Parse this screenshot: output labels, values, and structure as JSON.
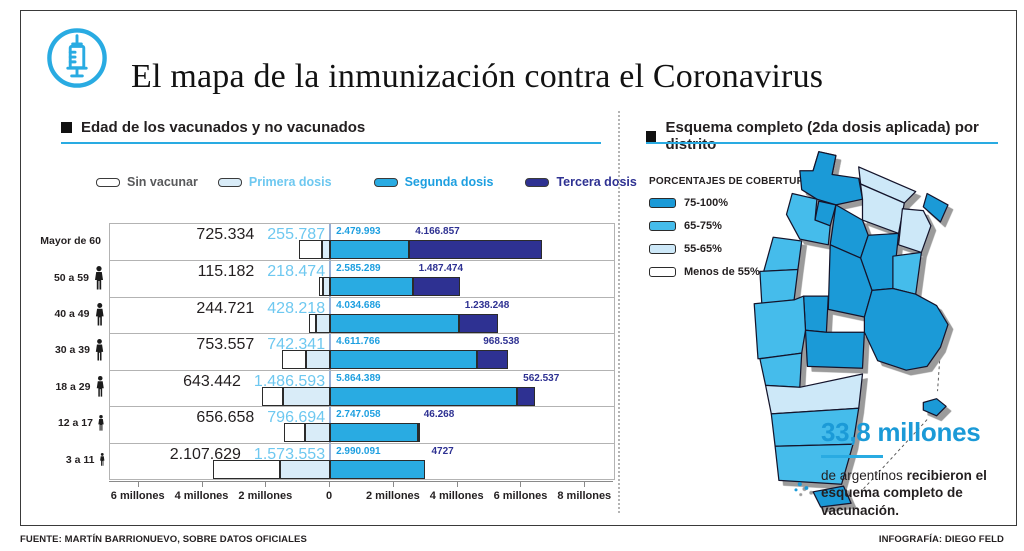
{
  "header": {
    "title": "El mapa de la inmunización contra el Coronavirus",
    "icon": "syringe-icon",
    "accent_color": "#29ABE2"
  },
  "left_panel": {
    "section_title": "Edad de los vacunados y no vacunados"
  },
  "right_panel": {
    "section_title": "Esquema completo (2da dosis aplicada) por distrito",
    "legend_title": "PORCENTAJES DE COBERTURA",
    "callout": {
      "headline": "33,8 millones",
      "text_normal": "de argentinos ",
      "text_bold": "recibieron el esquema completo de vacunación."
    }
  },
  "footer": {
    "source": "FUENTE: MARTÍN BARRIONUEVO, SOBRE DATOS OFICIALES",
    "credit": "INFOGRAFÍA: DIEGO FELD"
  },
  "chart_data": [
    {
      "type": "bar",
      "subtype": "diverging-stacked-horizontal",
      "title": "Edad de los vacunados y no vacunados",
      "categories": [
        "Mayor de 60",
        "50 a 59",
        "40 a 49",
        "30 a 39",
        "18 a 29",
        "12 a 17",
        "3 a 11"
      ],
      "series": [
        {
          "name": "Sin vacunar",
          "side": "left",
          "color": "#FFFFFF",
          "label_color": "#231F20",
          "legend_text_color": "#58595B",
          "values": [
            725334,
            115182,
            244721,
            753557,
            643442,
            656658,
            2107629
          ],
          "labels": [
            "725.334",
            "115.182",
            "244.721",
            "753.557",
            "643.442",
            "656.658",
            "2.107.629"
          ]
        },
        {
          "name": "Primera dosis",
          "side": "left",
          "color": "#D9ECF8",
          "label_color": "#6EC8F0",
          "legend_text_color": "#6EC8F0",
          "values": [
            255787,
            218474,
            428218,
            742341,
            1486593,
            796694,
            1573553
          ],
          "labels": [
            "255.787",
            "218.474",
            "428.218",
            "742.341",
            "1.486.593",
            "796.694",
            "1.573.553"
          ]
        },
        {
          "name": "Segunda dosis",
          "side": "right",
          "color": "#29ABE2",
          "label_color": "#1D9FE0",
          "legend_text_color": "#1D9FE0",
          "values": [
            2479993,
            2585289,
            4034686,
            4611766,
            5864389,
            2747058,
            2990091
          ],
          "labels": [
            "2.479.993",
            "2.585.289",
            "4.034.686",
            "4.611.766",
            "5.864.389",
            "2.747.058",
            "2.990.091"
          ]
        },
        {
          "name": "Tercera dosis",
          "side": "right",
          "color": "#2E3192",
          "label_color": "#2E3192",
          "legend_text_color": "#2E3192",
          "values": [
            4166857,
            1487474,
            1238248,
            968538,
            562537,
            46268,
            4727
          ],
          "labels": [
            "4.166.857",
            "1.487.474",
            "1.238.248",
            "968.538",
            "562.537",
            "46.268",
            "4727"
          ]
        }
      ],
      "x_ticks": [
        {
          "v": -6000000,
          "label": "6 millones"
        },
        {
          "v": -4000000,
          "label": "4 millones"
        },
        {
          "v": -2000000,
          "label": "2 millones"
        },
        {
          "v": 0,
          "label": "0"
        },
        {
          "v": 2000000,
          "label": "2 millones"
        },
        {
          "v": 4000000,
          "label": "4 millones"
        },
        {
          "v": 6000000,
          "label": "6 millones"
        },
        {
          "v": 8000000,
          "label": "8 millones"
        }
      ],
      "xlim": [
        -6900000,
        8900000
      ],
      "grid": "row-separators",
      "legend_position": "top",
      "zero_line_color": "#96ADD4"
    },
    {
      "type": "choropleth-map",
      "title": "Esquema completo (2da dosis aplicada) por distrito",
      "legend_title": "PORCENTAJES DE COBERTURA",
      "classes": [
        {
          "label": "75-100%",
          "color": "#1B9AD7"
        },
        {
          "label": "65-75%",
          "color": "#45BCEB"
        },
        {
          "label": "55-65%",
          "color": "#CDE8F8"
        },
        {
          "label": "Menos de 55%",
          "color": "#FFFFFF"
        }
      ],
      "districts": [
        {
          "name": "jujuy",
          "class": "75-100%"
        },
        {
          "name": "salta",
          "class": "75-100%"
        },
        {
          "name": "formosa",
          "class": "55-65%"
        },
        {
          "name": "chaco",
          "class": "55-65%"
        },
        {
          "name": "misiones",
          "class": "75-100%"
        },
        {
          "name": "corrientes",
          "class": "55-65%"
        },
        {
          "name": "tucuman",
          "class": "75-100%"
        },
        {
          "name": "catamarca",
          "class": "65-75%"
        },
        {
          "name": "santiago-del-estero",
          "class": "75-100%"
        },
        {
          "name": "santa-fe",
          "class": "75-100%"
        },
        {
          "name": "entre-rios",
          "class": "65-75%"
        },
        {
          "name": "la-rioja",
          "class": "65-75%"
        },
        {
          "name": "cordoba",
          "class": "75-100%"
        },
        {
          "name": "san-juan",
          "class": "65-75%"
        },
        {
          "name": "san-luis",
          "class": "75-100%"
        },
        {
          "name": "mendoza",
          "class": "65-75%"
        },
        {
          "name": "buenos-aires",
          "class": "75-100%"
        },
        {
          "name": "la-pampa",
          "class": "75-100%"
        },
        {
          "name": "neuquen",
          "class": "65-75%"
        },
        {
          "name": "rio-negro",
          "class": "55-65%"
        },
        {
          "name": "chubut",
          "class": "65-75%"
        },
        {
          "name": "santa-cruz",
          "class": "65-75%"
        },
        {
          "name": "tierra-del-fuego",
          "class": "75-100%"
        },
        {
          "name": "islas-malvinas",
          "class": "75-100%"
        }
      ],
      "annotation": "33,8 millones de argentinos recibieron el esquema completo de vacunación."
    }
  ]
}
